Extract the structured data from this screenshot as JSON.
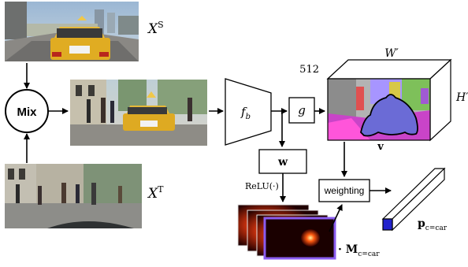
{
  "labels": {
    "source_label": "X^S",
    "source_base": "X",
    "source_sup": "S",
    "target_label": "X^T",
    "target_base": "X",
    "target_sup": "T",
    "mix": "Mix",
    "encoder": "f_b",
    "encoder_base": "f",
    "encoder_sub": "b",
    "g": "g",
    "w": "w",
    "relu": "ReLU(·)",
    "weighting": "weighting",
    "channels": "512",
    "width": "W′",
    "height": "H′",
    "v": "v",
    "mask_label": "M_{c=car}",
    "mask_base": "M",
    "mask_sub": "c=car",
    "proto_label": "p_{c=car}",
    "proto_base": "p",
    "proto_sub": "c=car"
  },
  "colors": {
    "proto_fill": "#2222cc",
    "mask_border": "#8a5cf0",
    "blob_fill": "#6a6ad4",
    "seg_road": "#cc44cc",
    "seg_pink": "#ff4fd8",
    "seg_sky": "#9d8cff",
    "seg_veg": "#7ac35a"
  }
}
